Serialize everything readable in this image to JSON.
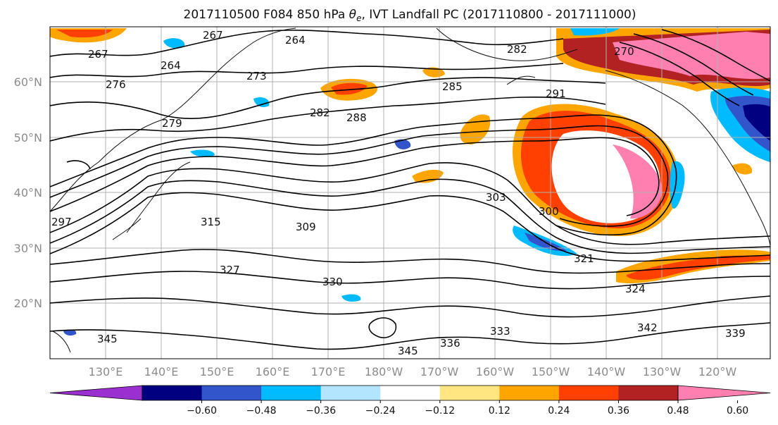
{
  "title_pre": "2017110500 F084 850 hPa ",
  "title_sym": "θ",
  "title_sub": "e",
  "title_post": ", IVT Landfall PC (2017110800 - 2017111000)",
  "lon_labels": [
    "130°E",
    "140°E",
    "150°E",
    "160°E",
    "170°E",
    "180°W",
    "170°W",
    "160°W",
    "150°W",
    "140°W",
    "130°W",
    "120°W"
  ],
  "lat_labels": [
    "60°N",
    "50°N",
    "40°N",
    "30°N",
    "20°N"
  ],
  "colorbar": {
    "ticks": [
      "−0.60",
      "−0.48",
      "−0.36",
      "−0.24",
      "−0.12",
      "0.12",
      "0.24",
      "0.36",
      "0.48",
      "0.60"
    ],
    "colors": [
      "#9b30d0",
      "#000080",
      "#3355cc",
      "#00bbff",
      "#b3e5ff",
      "#ffffff",
      "#ffe680",
      "#ffa500",
      "#ff4000",
      "#b22222",
      "#ff80b0"
    ]
  },
  "contour_labels": [
    "267",
    "264",
    "282",
    "267",
    "264",
    "270",
    "276",
    "273",
    "285",
    "291",
    "282",
    "288",
    "279",
    "297",
    "315",
    "309",
    "303",
    "300",
    "321",
    "327",
    "330",
    "342",
    "345",
    "333",
    "336",
    "345",
    "339",
    "324"
  ]
}
